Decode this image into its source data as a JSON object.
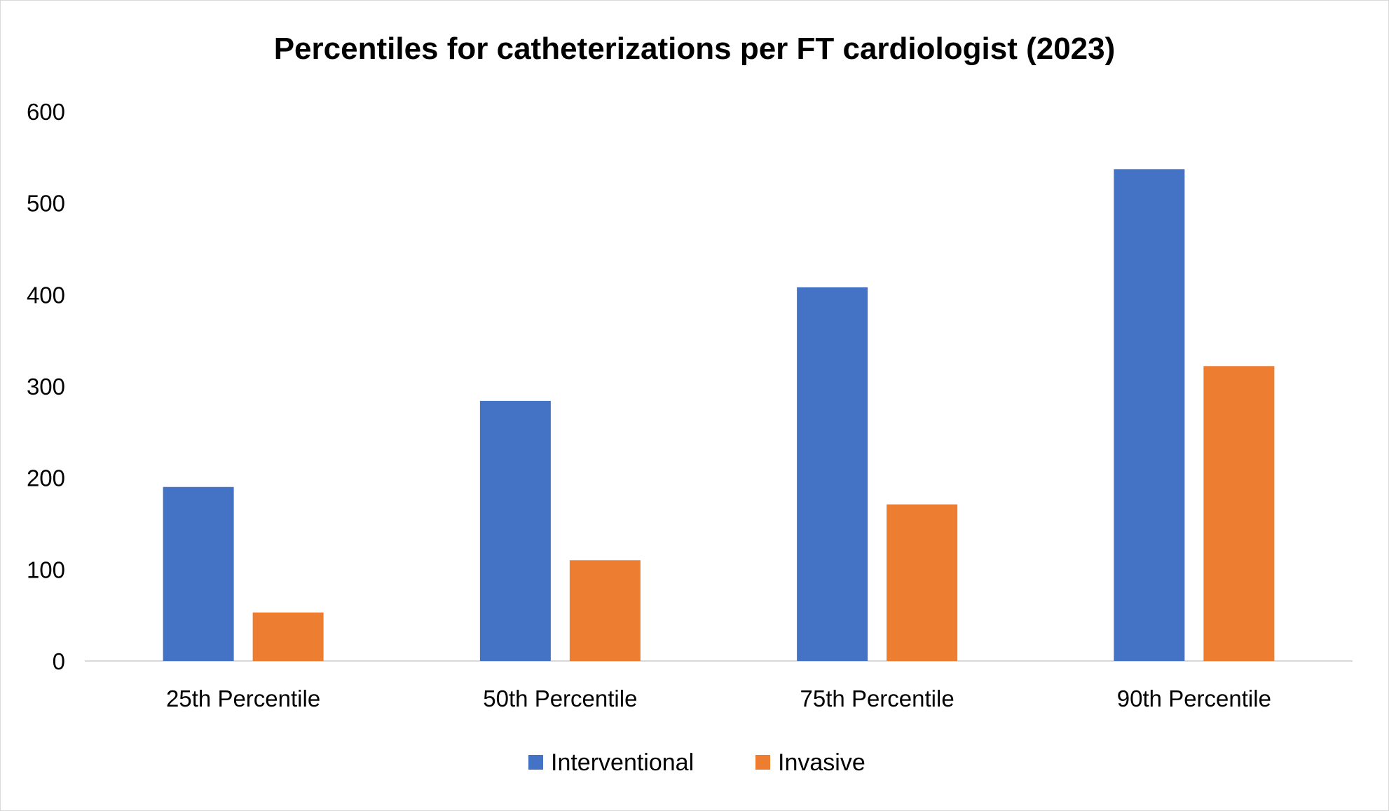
{
  "chart_data": {
    "type": "bar",
    "title": "Percentiles for catheterizations per FT cardiologist (2023)",
    "categories": [
      "25th Percentile",
      "50th Percentile",
      "75th Percentile",
      "90th Percentile"
    ],
    "series": [
      {
        "name": "Interventional",
        "color": "#4472C4",
        "values": [
          190,
          284,
          408,
          537
        ]
      },
      {
        "name": "Invasive",
        "color": "#ED7D31",
        "values": [
          53,
          110,
          171,
          322
        ]
      }
    ],
    "ylim": [
      0,
      600
    ],
    "yticks": [
      0,
      100,
      200,
      300,
      400,
      500,
      600
    ],
    "xlabel": "",
    "ylabel": "",
    "grid": false,
    "legend": "bottom-center"
  }
}
